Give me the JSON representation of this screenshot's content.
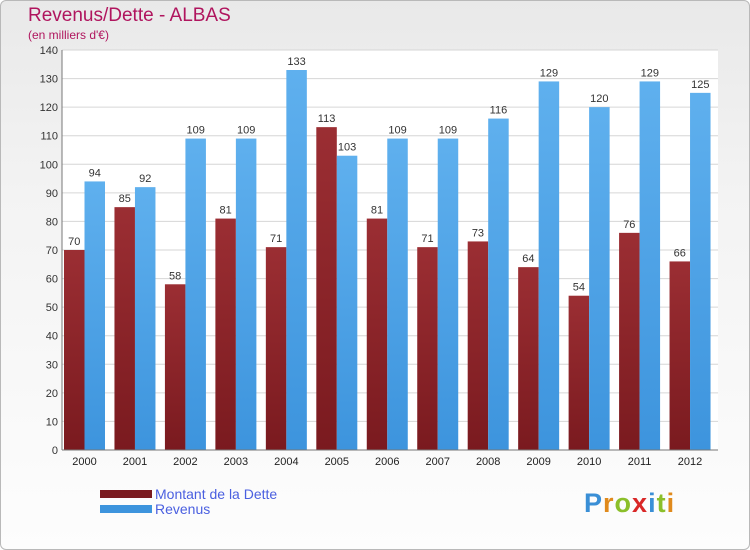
{
  "title": "Revenus/Dette - ALBAS",
  "subtitle": "(en milliers d'€)",
  "colors": {
    "debt": "#7a1a1f",
    "debt_light": "#9b2e33",
    "revenue": "#3d94dd",
    "revenue_light": "#5fb0ee",
    "title": "#b0155e",
    "legend_text": "#4a5fe0"
  },
  "chart_data": {
    "type": "bar",
    "categories": [
      "2000",
      "2001",
      "2002",
      "2003",
      "2004",
      "2005",
      "2006",
      "2007",
      "2008",
      "2009",
      "2010",
      "2011",
      "2012"
    ],
    "series": [
      {
        "name": "Montant de la Dette",
        "values": [
          70,
          85,
          58,
          81,
          71,
          113,
          81,
          71,
          73,
          64,
          54,
          76,
          66
        ]
      },
      {
        "name": "Revenus",
        "values": [
          94,
          92,
          109,
          109,
          133,
          103,
          109,
          109,
          116,
          129,
          120,
          129,
          125
        ]
      }
    ],
    "ylim": [
      0,
      140
    ],
    "ytick_step": 10,
    "grid": true,
    "legend_position": "bottom-left"
  },
  "legend": {
    "debt_label": "Montant de la Dette",
    "revenue_label": "Revenus"
  },
  "logo": {
    "text": "Proxiti",
    "letter_colors": [
      "#3a8fd6",
      "#e08a1c",
      "#8bbf2a",
      "#d92727",
      "#3a8fd6",
      "#8bbf2a",
      "#e08a1c"
    ]
  }
}
